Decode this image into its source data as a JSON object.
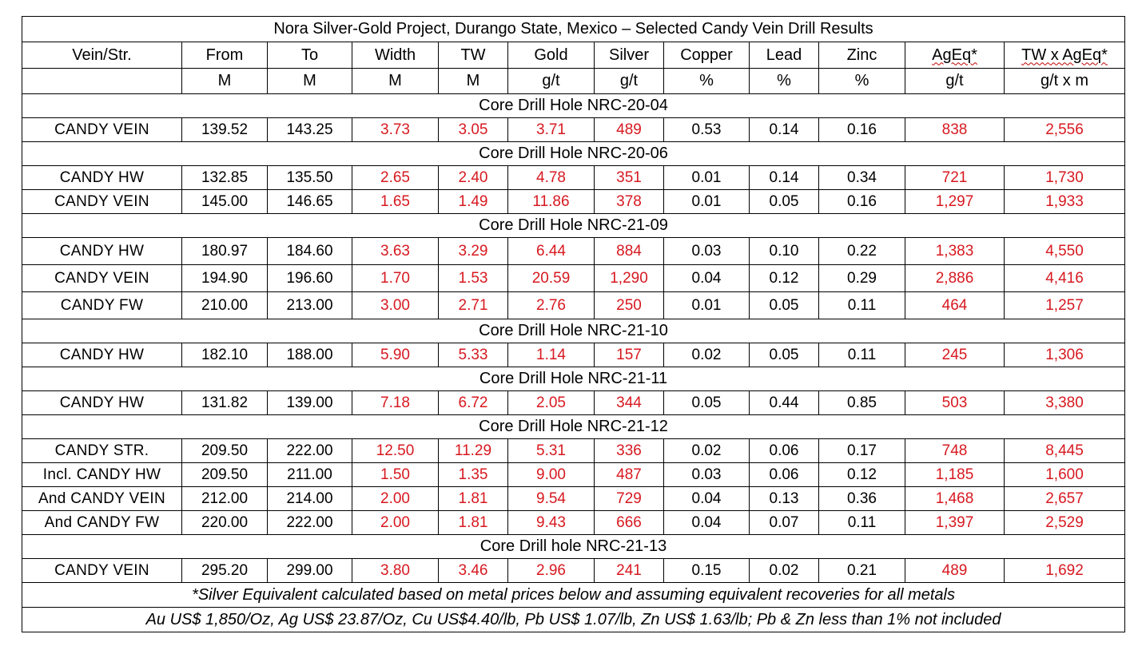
{
  "title": "Nora Silver-Gold Project, Durango State, Mexico – Selected Candy Vein Drill Results",
  "accent_color": "#d71920",
  "headers": [
    "Vein/Str.",
    "From",
    "To",
    "Width",
    "TW",
    "Gold",
    "Silver",
    "Copper",
    "Lead",
    "Zinc",
    "AgEq*",
    "TW x AgEq*"
  ],
  "units": [
    "",
    "M",
    "M",
    "M",
    "M",
    "g/t",
    "g/t",
    "%",
    "%",
    "%",
    "g/t",
    "g/t x m"
  ],
  "holes": [
    {
      "label": "Core Drill Hole NRC-20-04",
      "rows": [
        {
          "vein": "CANDY VEIN",
          "from": "139.52",
          "to": "143.25",
          "width": "3.73",
          "tw": "3.05",
          "gold": "3.71",
          "silver": "489",
          "copper": "0.53",
          "lead": "0.14",
          "zinc": "0.16",
          "ageq": "838",
          "twageq": "2,556"
        }
      ]
    },
    {
      "label": "Core Drill Hole NRC-20-06",
      "rows": [
        {
          "vein": "CANDY HW",
          "from": "132.85",
          "to": "135.50",
          "width": "2.65",
          "tw": "2.40",
          "gold": "4.78",
          "silver": "351",
          "copper": "0.01",
          "lead": "0.14",
          "zinc": "0.34",
          "ageq": "721",
          "twageq": "1,730"
        },
        {
          "vein": "CANDY VEIN",
          "from": "145.00",
          "to": "146.65",
          "width": "1.65",
          "tw": "1.49",
          "gold": "11.86",
          "silver": "378",
          "copper": "0.01",
          "lead": "0.05",
          "zinc": "0.16",
          "ageq": "1,297",
          "twageq": "1,933"
        }
      ]
    },
    {
      "label": "Core Drill Hole NRC-21-09",
      "rows": [
        {
          "vein": "CANDY HW",
          "from": "180.97",
          "to": "184.60",
          "width": "3.63",
          "tw": "3.29",
          "gold": "6.44",
          "silver": "884",
          "copper": "0.03",
          "lead": "0.10",
          "zinc": "0.22",
          "ageq": "1,383",
          "twageq": "4,550"
        },
        {
          "vein": "CANDY VEIN",
          "from": "194.90",
          "to": "196.60",
          "width": "1.70",
          "tw": "1.53",
          "gold": "20.59",
          "silver": "1,290",
          "copper": "0.04",
          "lead": "0.12",
          "zinc": "0.29",
          "ageq": "2,886",
          "twageq": "4,416"
        },
        {
          "vein": "CANDY FW",
          "from": "210.00",
          "to": "213.00",
          "width": "3.00",
          "tw": "2.71",
          "gold": "2.76",
          "silver": "250",
          "copper": "0.01",
          "lead": "0.05",
          "zinc": "0.11",
          "ageq": "464",
          "twageq": "1,257"
        }
      ]
    },
    {
      "label": "Core Drill Hole NRC-21-10",
      "rows": [
        {
          "vein": "CANDY HW",
          "from": "182.10",
          "to": "188.00",
          "width": "5.90",
          "tw": "5.33",
          "gold": "1.14",
          "silver": "157",
          "copper": "0.02",
          "lead": "0.05",
          "zinc": "0.11",
          "ageq": "245",
          "twageq": "1,306"
        }
      ]
    },
    {
      "label": "Core Drill Hole NRC-21-11",
      "rows": [
        {
          "vein": "CANDY HW",
          "from": "131.82",
          "to": "139.00",
          "width": "7.18",
          "tw": "6.72",
          "gold": "2.05",
          "silver": "344",
          "copper": "0.05",
          "lead": "0.44",
          "zinc": "0.85",
          "ageq": "503",
          "twageq": "3,380"
        }
      ]
    },
    {
      "label": "Core Drill Hole NRC-21-12",
      "rows": [
        {
          "vein": "CANDY STR.",
          "from": "209.50",
          "to": "222.00",
          "width": "12.50",
          "tw": "11.29",
          "gold": "5.31",
          "silver": "336",
          "copper": "0.02",
          "lead": "0.06",
          "zinc": "0.17",
          "ageq": "748",
          "twageq": "8,445"
        },
        {
          "vein": "Incl. CANDY HW",
          "from": "209.50",
          "to": "211.00",
          "width": "1.50",
          "tw": "1.35",
          "gold": "9.00",
          "silver": "487",
          "copper": "0.03",
          "lead": "0.06",
          "zinc": "0.12",
          "ageq": "1,185",
          "twageq": "1,600"
        },
        {
          "vein": "And CANDY VEIN",
          "from": "212.00",
          "to": "214.00",
          "width": "2.00",
          "tw": "1.81",
          "gold": "9.54",
          "silver": "729",
          "copper": "0.04",
          "lead": "0.13",
          "zinc": "0.36",
          "ageq": "1,468",
          "twageq": "2,657"
        },
        {
          "vein": "And CANDY FW",
          "from": "220.00",
          "to": "222.00",
          "width": "2.00",
          "tw": "1.81",
          "gold": "9.43",
          "silver": "666",
          "copper": "0.04",
          "lead": "0.07",
          "zinc": "0.11",
          "ageq": "1,397",
          "twageq": "2,529"
        }
      ]
    },
    {
      "label": "Core Drill hole NRC-21-13",
      "rows": [
        {
          "vein": "CANDY VEIN",
          "from": "295.20",
          "to": "299.00",
          "width": "3.80",
          "tw": "3.46",
          "gold": "2.96",
          "silver": "241",
          "copper": "0.15",
          "lead": "0.02",
          "zinc": "0.21",
          "ageq": "489",
          "twageq": "1,692"
        }
      ]
    }
  ],
  "footnotes": [
    "*Silver Equivalent calculated based on metal prices below and assuming equivalent recoveries for all metals",
    "Au US$ 1,850/Oz, Ag US$ 23.87/Oz, Cu US$4.40/lb, Pb US$ 1.07/lb, Zn US$ 1.63/lb; Pb & Zn less than 1% not included"
  ]
}
